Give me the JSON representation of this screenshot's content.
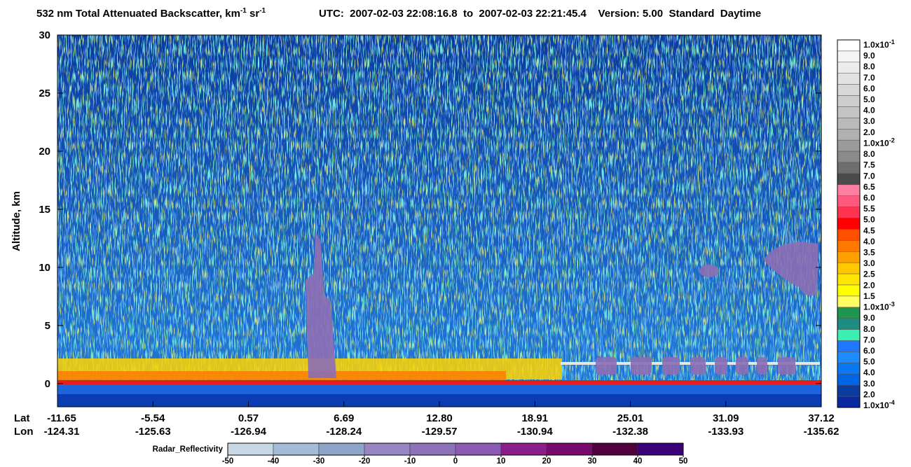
{
  "chart_data": {
    "type": "heatmap",
    "title": {
      "text": "532 nm Total Attenuated Backscatter, km",
      "sup1": "-1",
      "mid": " sr",
      "sup2": "-1",
      "rest": "UTC:  2007-02-03 22:08:16.8  to  2007-02-03 22:21:45.4    Version: 5.00  Standard  Daytime"
    },
    "ylabel": "Altitude, km",
    "ylim": [
      -2,
      30
    ],
    "yticks": [
      0,
      5,
      10,
      15,
      20,
      25,
      30
    ],
    "x_labels": {
      "lat_title": "Lat",
      "lon_title": "Lon",
      "lat": [
        "-11.65",
        "-5.54",
        "0.57",
        "6.69",
        "12.80",
        "18.91",
        "25.01",
        "31.09",
        "37.12"
      ],
      "lon": [
        "-124.31",
        "-125.63",
        "-126.94",
        "-128.24",
        "-129.57",
        "-130.94",
        "-132.38",
        "-133.93",
        "-135.62"
      ]
    },
    "colorbar": {
      "labels": [
        {
          "text": "1.0x10",
          "sup": "-1"
        },
        "9.0",
        "8.0",
        "7.0",
        "6.0",
        "5.0",
        "4.0",
        "3.0",
        "2.0",
        {
          "text": "1.0x10",
          "sup": "-2"
        },
        "8.0",
        "7.5",
        "7.0",
        "6.5",
        "6.0",
        "5.5",
        "5.0",
        "4.5",
        "4.0",
        "3.5",
        "3.0",
        "2.5",
        "2.0",
        "1.5",
        {
          "text": "1.0x10",
          "sup": "-3"
        },
        "9.0",
        "8.0",
        "7.0",
        "6.0",
        "5.0",
        "4.0",
        "3.0",
        "2.0",
        {
          "text": "1.0x10",
          "sup": "-4"
        }
      ],
      "colors": [
        "#ffffff",
        "#f5f5f5",
        "#ececec",
        "#e2e2e2",
        "#d8d8d8",
        "#cecece",
        "#c4c4c4",
        "#bababa",
        "#b0b0b0",
        "#9b9b9b",
        "#8a8a8a",
        "#6e6e6e",
        "#4b4b4b",
        "#ff7fa0",
        "#ff5a7d",
        "#ff3250",
        "#ff0000",
        "#ff5000",
        "#ff7800",
        "#ffa000",
        "#ffc800",
        "#ffe600",
        "#ffff00",
        "#ffff64",
        "#1e9650",
        "#1e8c82",
        "#3cf0b4",
        "#1e78ff",
        "#1e8cff",
        "#0a78f0",
        "#0064e6",
        "#0a3ca0",
        "#0a28a0"
      ]
    },
    "radar_bar": {
      "title": "Radar_Reflectivity",
      "ticks": [
        -50,
        -40,
        -30,
        -20,
        -10,
        0,
        10,
        20,
        30,
        40,
        50
      ],
      "colors": [
        "#c8d7e6",
        "#a5bcd7",
        "#8ca5c8",
        "#9687c3",
        "#8c73b9",
        "#8c5ab4",
        "#8c1e8c",
        "#780a6e",
        "#50003c",
        "#3c0078"
      ]
    }
  }
}
